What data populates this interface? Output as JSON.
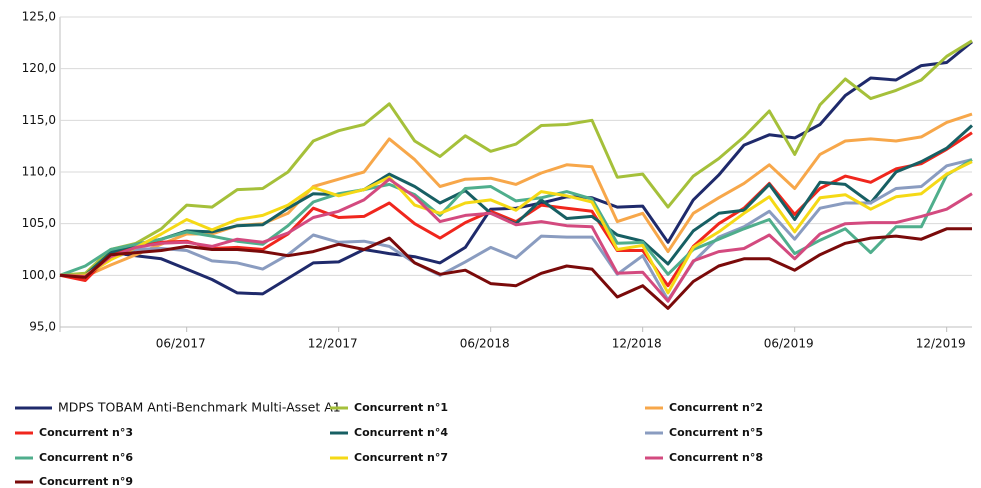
{
  "chart_data": {
    "type": "line",
    "categories": [
      null,
      null,
      null,
      null,
      null,
      "06/2017",
      null,
      null,
      null,
      null,
      null,
      "12/2017",
      null,
      null,
      null,
      null,
      null,
      "06/2018",
      null,
      null,
      null,
      null,
      null,
      "12/2018",
      null,
      null,
      null,
      null,
      null,
      "06/2019",
      null,
      null,
      null,
      null,
      null,
      "12/2019",
      null
    ],
    "ylim": [
      95,
      125
    ],
    "yticks": [
      {
        "value": 95,
        "label": "95,0"
      },
      {
        "value": 100,
        "label": "100,0"
      },
      {
        "value": 105,
        "label": "105,0"
      },
      {
        "value": 110,
        "label": "110,0"
      },
      {
        "value": 115,
        "label": "115,0"
      },
      {
        "value": 120,
        "label": "120,0"
      },
      {
        "value": 125,
        "label": "125,0"
      }
    ],
    "grid": true,
    "legend": "bottom",
    "series": [
      {
        "name": "MDPS TOBAM Anti-Benchmark Multi-Asset A1",
        "color": "#1f2a6b",
        "values": [
          100,
          99.9,
          102.2,
          101.9,
          101.6,
          100.6,
          99.6,
          98.3,
          98.2,
          99.7,
          101.2,
          101.3,
          102.5,
          102.1,
          101.8,
          101.2,
          102.7,
          106.4,
          106.5,
          107,
          107.6,
          107.5,
          106.6,
          106.7,
          103.2,
          107.3,
          109.7,
          112.6,
          113.6,
          113.3,
          114.6,
          117.4,
          119.1,
          118.9,
          120.3,
          120.6,
          122.6
        ]
      },
      {
        "name": "Concurrent n°1",
        "color": "#a5c03a",
        "values": [
          100,
          100.2,
          102.5,
          103.1,
          104.5,
          106.8,
          106.6,
          108.3,
          108.4,
          110,
          113,
          114,
          114.6,
          116.6,
          113,
          111.5,
          113.5,
          112,
          112.7,
          114.5,
          114.6,
          115,
          109.5,
          109.8,
          106.6,
          109.6,
          111.3,
          113.4,
          115.9,
          111.7,
          116.5,
          119,
          117.1,
          117.9,
          118.9,
          121.2,
          122.7
        ]
      },
      {
        "name": "Concurrent n°2",
        "color": "#f7a74a",
        "values": [
          100,
          99.9,
          101,
          102,
          103,
          104,
          104,
          104.8,
          105,
          106,
          108.6,
          109.3,
          110,
          113.2,
          111.2,
          108.6,
          109.3,
          109.4,
          108.8,
          109.9,
          110.7,
          110.5,
          105.2,
          106,
          102.3,
          106,
          107.5,
          108.9,
          110.7,
          108.4,
          111.7,
          113,
          113.2,
          113,
          113.4,
          114.8,
          115.6
        ]
      },
      {
        "name": "Concurrent n°3",
        "color": "#f0261d",
        "values": [
          100,
          99.5,
          102,
          102.8,
          103.2,
          103.3,
          102.6,
          102.7,
          102.5,
          104,
          106.5,
          105.6,
          105.7,
          107,
          105,
          103.6,
          105.1,
          106.2,
          105.2,
          106.8,
          106.5,
          106.2,
          102.4,
          102.4,
          99,
          102.8,
          105,
          106.5,
          108.9,
          105.9,
          108.4,
          109.6,
          109,
          110.3,
          110.8,
          112.2,
          113.8
        ]
      },
      {
        "name": "Concurrent n°4",
        "color": "#175f63",
        "values": [
          100,
          100,
          102.2,
          103,
          103.5,
          104.3,
          104.2,
          104.8,
          104.9,
          106.5,
          107.9,
          107.8,
          108.3,
          109.8,
          108.6,
          107,
          108.2,
          106,
          105,
          107.3,
          105.5,
          105.7,
          103.9,
          103.3,
          101.1,
          104.3,
          106,
          106.3,
          108.8,
          105.4,
          109,
          108.8,
          107,
          110,
          111,
          112.3,
          114.5
        ]
      },
      {
        "name": "Concurrent n°5",
        "color": "#8a9cc0",
        "values": [
          100,
          100,
          101.6,
          102.5,
          102.6,
          102.4,
          101.4,
          101.2,
          100.6,
          102,
          103.9,
          103.2,
          103.3,
          102.8,
          101.2,
          100,
          101.3,
          102.7,
          101.7,
          103.8,
          103.7,
          103.7,
          100.1,
          101.9,
          97.6,
          101.3,
          103.7,
          104.7,
          106.2,
          103.5,
          106.5,
          107,
          107,
          108.4,
          108.6,
          110.6,
          111.2
        ]
      },
      {
        "name": "Concurrent n°6",
        "color": "#4fae8c",
        "values": [
          100,
          100.9,
          102.5,
          103,
          103.5,
          104.2,
          103.8,
          103.3,
          103,
          104.8,
          107.1,
          107.9,
          108.3,
          108.8,
          107.8,
          105.8,
          108.4,
          108.6,
          107.2,
          107.5,
          108.1,
          107.4,
          103.1,
          103.2,
          100.1,
          102.5,
          103.5,
          104.5,
          105.4,
          102.1,
          103.4,
          104.5,
          102.2,
          104.7,
          104.7,
          109.7,
          111.2
        ]
      },
      {
        "name": "Concurrent n°7",
        "color": "#f5d916",
        "values": [
          100,
          100,
          101.5,
          102.7,
          104,
          105.4,
          104.4,
          105.4,
          105.8,
          106.8,
          108.5,
          107.7,
          108.3,
          109.5,
          106.8,
          106,
          107,
          107.3,
          106.3,
          108.1,
          107.7,
          107.1,
          102.5,
          102.9,
          98.3,
          102.7,
          104.2,
          106,
          107.6,
          104.2,
          107.5,
          107.8,
          106.4,
          107.6,
          107.9,
          109.8,
          111
        ]
      },
      {
        "name": "Concurrent n°8",
        "color": "#d34a7f",
        "values": [
          100,
          99.9,
          101.8,
          102.7,
          103.1,
          103.2,
          102.8,
          103.5,
          103.2,
          104.1,
          105.6,
          106.2,
          107.3,
          109.3,
          107.6,
          105.2,
          105.8,
          106,
          104.9,
          105.2,
          104.8,
          104.7,
          100.2,
          100.3,
          97.5,
          101.4,
          102.3,
          102.6,
          103.9,
          101.6,
          104,
          105,
          105.1,
          105.1,
          105.7,
          106.4,
          107.9
        ]
      },
      {
        "name": "Concurrent n°9",
        "color": "#7a0a0a",
        "values": [
          100,
          99.8,
          102,
          102.2,
          102.4,
          102.8,
          102.5,
          102.5,
          102.3,
          101.9,
          102.3,
          103,
          102.5,
          103.6,
          101.2,
          100.1,
          100.5,
          99.2,
          99,
          100.2,
          100.9,
          100.6,
          97.9,
          99,
          96.8,
          99.4,
          100.9,
          101.6,
          101.6,
          100.5,
          102,
          103.1,
          103.6,
          103.8,
          103.5,
          104.5,
          104.5
        ]
      }
    ]
  }
}
